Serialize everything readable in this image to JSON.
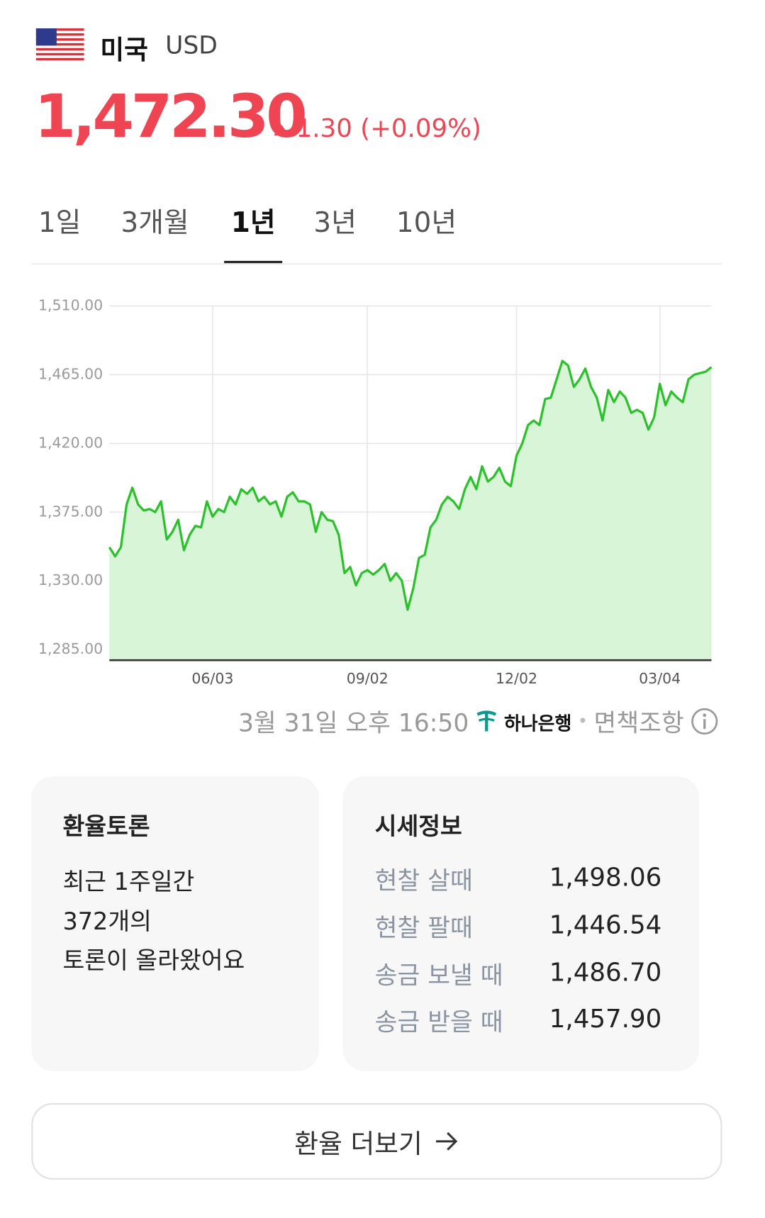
{
  "header": {
    "country": "미국",
    "currency": "USD",
    "price": "1,472.30",
    "change": "1.30 (+0.09%)"
  },
  "tabs": {
    "items": [
      "1일",
      "3개월",
      "1년",
      "3년",
      "10년"
    ],
    "active": 2
  },
  "chart_data": {
    "type": "line",
    "categories": [
      null,
      null,
      null,
      null,
      null,
      null,
      null,
      null,
      null,
      null,
      null,
      null,
      null,
      null,
      null,
      null,
      null,
      null,
      "06/03",
      null,
      null,
      null,
      null,
      null,
      null,
      null,
      null,
      null,
      null,
      null,
      null,
      null,
      null,
      null,
      null,
      null,
      null,
      null,
      null,
      null,
      null,
      null,
      null,
      null,
      null,
      "09/02",
      null,
      null,
      null,
      null,
      null,
      null,
      null,
      null,
      null,
      null,
      null,
      null,
      null,
      null,
      null,
      null,
      null,
      null,
      null,
      null,
      null,
      null,
      null,
      null,
      null,
      "12/02",
      null,
      null,
      null,
      null,
      null,
      null,
      null,
      null,
      null,
      null,
      null,
      null,
      null,
      null,
      null,
      null,
      null,
      null,
      null,
      null,
      null,
      null,
      null,
      null,
      "03/04",
      null,
      null,
      null,
      null,
      null,
      null,
      null,
      null,
      null
    ],
    "series": [
      {
        "color": "#2bc12b",
        "fill": "#d8f5d8",
        "values": [
          1352,
          1346,
          1352,
          1380,
          1391,
          1380,
          1376,
          1377,
          1375,
          1382,
          1357,
          1362,
          1370,
          1350,
          1360,
          1366,
          1365,
          1382,
          1372,
          1377,
          1375,
          1385,
          1380,
          1390,
          1387,
          1391,
          1382,
          1385,
          1380,
          1382,
          1372,
          1385,
          1388,
          1382,
          1382,
          1380,
          1362,
          1375,
          1370,
          1369,
          1360,
          1335,
          1339,
          1327,
          1335,
          1337,
          1334,
          1337,
          1341,
          1330,
          1335,
          1330,
          1311,
          1325,
          1345,
          1347,
          1365,
          1370,
          1380,
          1385,
          1382,
          1377,
          1390,
          1398,
          1390,
          1405,
          1395,
          1398,
          1404,
          1395,
          1392,
          1412,
          1420,
          1432,
          1435,
          1432,
          1449,
          1450,
          1462,
          1474,
          1471,
          1457,
          1462,
          1469,
          1457,
          1450,
          1435,
          1455,
          1447,
          1454,
          1450,
          1440,
          1442,
          1440,
          1429,
          1437,
          1459,
          1445,
          1454,
          1450,
          1447,
          1462,
          1465,
          1466,
          1467,
          1470
        ]
      }
    ],
    "ylim": [
      1285,
      1510
    ],
    "yticks": [
      {
        "value": 1285,
        "label": "1,285.00"
      },
      {
        "value": 1330,
        "label": "1,330.00"
      },
      {
        "value": 1375,
        "label": "1,375.00"
      },
      {
        "value": 1420,
        "label": "1,420.00"
      },
      {
        "value": 1465,
        "label": "1,465.00"
      },
      {
        "value": 1510,
        "label": "1,510.00"
      }
    ],
    "grid": true
  },
  "footer": {
    "timestamp": "3월 31일 오후 16:50",
    "bank": "하나은행",
    "disclaimer": "면책조항"
  },
  "discussion": {
    "title": "환율토론",
    "lines": [
      "최근 1주일간",
      "372개의",
      "토론이 올라왔어요"
    ]
  },
  "quote": {
    "title": "시세정보",
    "rows": [
      [
        "현찰 살때",
        "1,498.06"
      ],
      [
        "현찰 팔때",
        "1,446.54"
      ],
      [
        "송금 보낼 때",
        "1,486.70"
      ],
      [
        "송금 받을 때",
        "1,457.90"
      ]
    ]
  },
  "button": "환율 더보기"
}
